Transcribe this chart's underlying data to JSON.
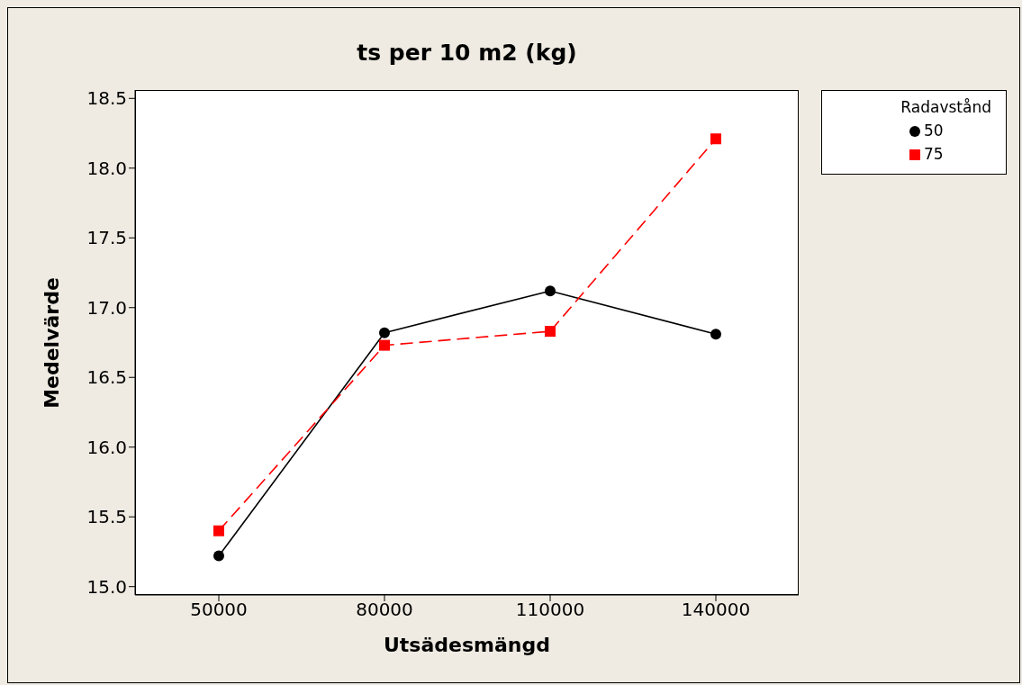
{
  "chart_data": {
    "type": "line",
    "title": "ts per 10 m2 (kg)",
    "xlabel": "Utsädesmängd",
    "ylabel": "Medelvärde",
    "legend_title": "Radavstånd",
    "categories": [
      "50000",
      "80000",
      "110000",
      "140000"
    ],
    "series": [
      {
        "name": "50",
        "color": "#000000",
        "marker": "circle",
        "line_style": "solid",
        "values": [
          15.22,
          16.82,
          17.12,
          16.81
        ]
      },
      {
        "name": "75",
        "color": "#ff0000",
        "marker": "square",
        "line_style": "dashed",
        "values": [
          15.4,
          16.73,
          16.83,
          18.21
        ]
      }
    ],
    "ylim": [
      14.94,
      18.56
    ],
    "yticks": [
      {
        "value": 15,
        "label": "15.0"
      },
      {
        "value": 15.5,
        "label": "15.5"
      },
      {
        "value": 16,
        "label": "16.0"
      },
      {
        "value": 16.5,
        "label": "16.5"
      },
      {
        "value": 17,
        "label": "17.0"
      },
      {
        "value": 17.5,
        "label": "17.5"
      },
      {
        "value": 18,
        "label": "18.0"
      },
      {
        "value": 18.5,
        "label": "18.5"
      }
    ],
    "grid": false,
    "legend": "top right"
  }
}
